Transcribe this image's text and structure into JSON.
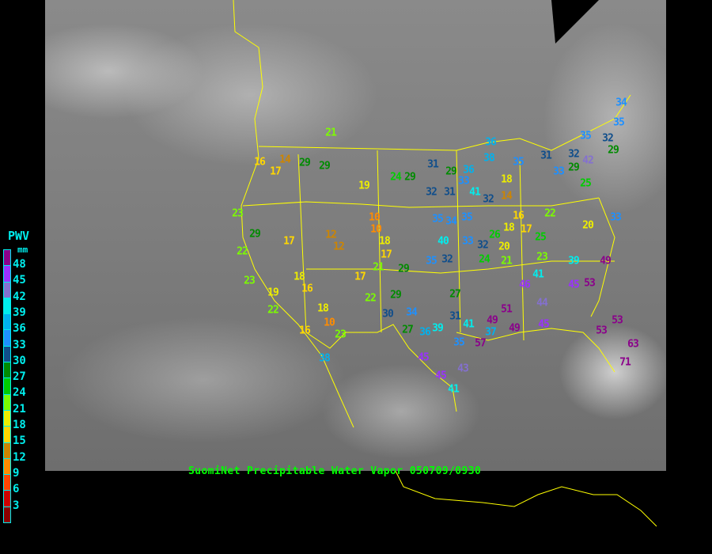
{
  "caption": "SuomiNet Precipitable Water Vapor 050709/0930",
  "legend": {
    "title": "PWV",
    "unit": "mm",
    "ticks": [
      "48",
      "45",
      "42",
      "39",
      "36",
      "33",
      "30",
      "27",
      "24",
      "21",
      "18",
      "15",
      "12",
      "9",
      "6",
      "3"
    ],
    "colors": [
      "#8b008b",
      "#9b30ff",
      "#8470d0",
      "#00eeee",
      "#00b2ee",
      "#1e90ff",
      "#104e8b",
      "#008b00",
      "#00cd00",
      "#7cfc00",
      "#eeee00",
      "#ffd700",
      "#cd8500",
      "#ff8c00",
      "#ff4500",
      "#cd0000",
      "#8b0000"
    ]
  },
  "stations": [
    34,
    35,
    35,
    32,
    29,
    36,
    38,
    35,
    31,
    32,
    42,
    29,
    33,
    31,
    29,
    36,
    24,
    29,
    21,
    29,
    29,
    19,
    16,
    17,
    14,
    18,
    33,
    32,
    31,
    41,
    32,
    14,
    25,
    22,
    16,
    23,
    29,
    22,
    17,
    12,
    12,
    10,
    10,
    18,
    17,
    21,
    29,
    35,
    34,
    35,
    40,
    33,
    32,
    26,
    18,
    20,
    17,
    25,
    20,
    33,
    39,
    49,
    45,
    53,
    41,
    46,
    44,
    51,
    49,
    23,
    19,
    18,
    16,
    17,
    22,
    18,
    10,
    16,
    23,
    22,
    29,
    30,
    27,
    34,
    36,
    39,
    38,
    45,
    45,
    43,
    41,
    31,
    41,
    35,
    37,
    57,
    53,
    53,
    63,
    71,
    49,
    45,
    27,
    24,
    21,
    23,
    35,
    32
  ]
}
